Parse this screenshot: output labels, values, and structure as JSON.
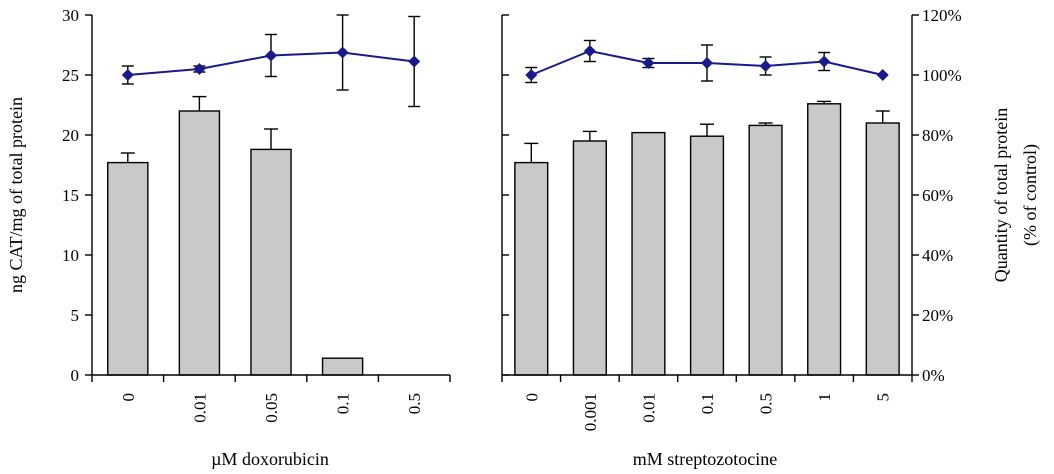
{
  "colors": {
    "bar_fill": "#c9c9c9",
    "line": "#1a1a8c",
    "marker": "#1a1a8c",
    "axis": "#000000"
  },
  "chart_data": [
    {
      "type": "bar",
      "categories": [
        "0",
        "0.01",
        "0.05",
        "0.1",
        "0.5"
      ],
      "xlabel": "µM doxorubicin",
      "ylabel": "ng CAT/mg of total protein",
      "ylim": [
        0,
        30
      ],
      "yticks": [
        "0",
        "5",
        "10",
        "15",
        "20",
        "25",
        "30"
      ],
      "secondary_ylim": [
        0,
        1.2
      ],
      "series": [
        {
          "type": "bar",
          "axis": "left",
          "values": [
            17.7,
            22.0,
            18.8,
            1.4,
            0.0
          ],
          "errors": [
            0.8,
            1.2,
            1.7,
            0,
            0
          ]
        },
        {
          "type": "line",
          "axis": "right",
          "values": [
            1.0,
            1.02,
            1.065,
            1.075,
            1.045
          ],
          "errors": [
            0.03,
            0.01,
            0.07,
            0.125,
            0.15
          ]
        }
      ]
    },
    {
      "type": "bar",
      "categories": [
        "0",
        "0.001",
        "0.01",
        "0.1",
        "0.5",
        "1",
        "5"
      ],
      "xlabel": "mM streptozotocine",
      "ylabel": "Quantity of total protein (% of control)",
      "ylabel_lines": [
        "Quantity of total protein",
        "(% of control)"
      ],
      "ylim": [
        0,
        1.2
      ],
      "yticks": [
        "0%",
        "20%",
        "40%",
        "60%",
        "80%",
        "100%",
        "120%"
      ],
      "primary_ylim": [
        0,
        30
      ],
      "series": [
        {
          "type": "bar",
          "axis": "left",
          "values": [
            17.7,
            19.5,
            20.2,
            19.9,
            20.8,
            22.6,
            21.0
          ],
          "errors": [
            1.6,
            0.8,
            0,
            1.0,
            0.2,
            0.2,
            1.0
          ]
        },
        {
          "type": "line",
          "axis": "right",
          "values": [
            1.0,
            1.08,
            1.04,
            1.04,
            1.03,
            1.045,
            1.0
          ],
          "errors": [
            0.025,
            0.035,
            0.015,
            0.06,
            0.03,
            0.03,
            0
          ]
        }
      ]
    }
  ]
}
